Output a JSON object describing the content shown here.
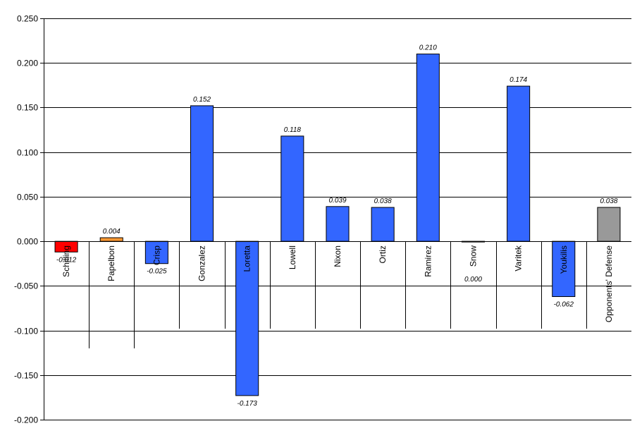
{
  "chart_data": {
    "type": "bar",
    "categories": [
      "Schilling",
      "Papelbon",
      "Crisp",
      "Gonzalez",
      "Loretta",
      "Lowell",
      "Nixon",
      "Ortiz",
      "Ramirez",
      "Snow",
      "Varitek",
      "Youkilis",
      "Opponents' Defense"
    ],
    "values": [
      -0.012,
      0.004,
      -0.025,
      0.152,
      -0.173,
      0.118,
      0.039,
      0.038,
      0.21,
      0.0,
      0.174,
      -0.062,
      0.038
    ],
    "data_labels": [
      "-0.012",
      "0.004",
      "-0.025",
      "0.152",
      "-0.173",
      "0.118",
      "0.039",
      "0.038",
      "0.210",
      "0.000",
      "0.174",
      "-0.062",
      "0.038"
    ],
    "colors": [
      "#ff0000",
      "#ff9933",
      "#3366ff",
      "#3366ff",
      "#3366ff",
      "#3366ff",
      "#3366ff",
      "#3366ff",
      "#3366ff",
      "#3366ff",
      "#3366ff",
      "#3366ff",
      "#999999"
    ],
    "ylim": [
      -0.2,
      0.25
    ],
    "yticks": [
      0.25,
      0.2,
      0.15,
      0.1,
      0.05,
      0.0,
      -0.05,
      -0.1,
      -0.15,
      -0.2
    ],
    "ytick_labels": [
      "0.250",
      "0.200",
      "0.150",
      "0.100",
      "0.050",
      "0.000",
      "-0.050",
      "-0.100",
      "-0.150",
      "-0.200"
    ],
    "grid": true,
    "title": "",
    "xlabel": "",
    "ylabel": ""
  }
}
